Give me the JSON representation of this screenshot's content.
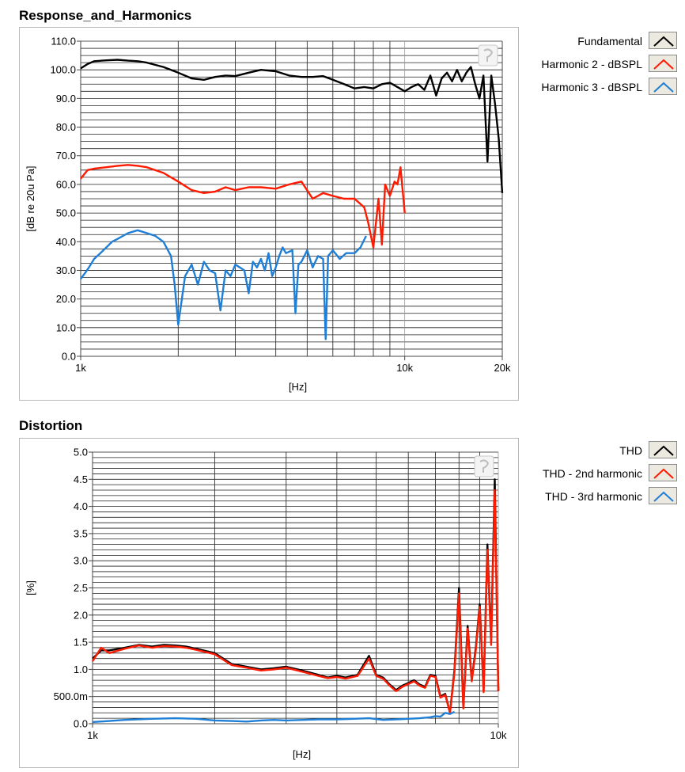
{
  "charts": [
    {
      "title": "Response_and_Harmonics",
      "chart_data": {
        "type": "line",
        "x_scale": "log",
        "xlim": [
          1000,
          20000
        ],
        "ylim": [
          0,
          110
        ],
        "xlabel": "[Hz]",
        "ylabel": "[dB re 20u Pa]",
        "x_tick_labels": [
          {
            "value": 1000,
            "label": "1k"
          },
          {
            "value": 10000,
            "label": "10k"
          },
          {
            "value": 20000,
            "label": "20k"
          }
        ],
        "y_ticks": [
          0,
          10,
          20,
          30,
          40,
          50,
          60,
          70,
          80,
          90,
          100,
          110
        ],
        "y_tick_labels": [
          "0.0",
          "10.0",
          "20.0",
          "30.0",
          "40.0",
          "50.0",
          "60.0",
          "70.0",
          "80.0",
          "90.0",
          "100.0",
          "110.0"
        ],
        "grid": true,
        "legend": "right",
        "series": [
          {
            "name": "Fundamental",
            "color": "#000000",
            "x": [
              1000,
              1050,
              1100,
              1200,
              1300,
              1400,
              1500,
              1600,
              1800,
              2000,
              2200,
              2400,
              2600,
              2800,
              3000,
              3300,
              3600,
              4000,
              4400,
              4800,
              5200,
              5600,
              6000,
              6500,
              7000,
              7500,
              8000,
              8500,
              9000,
              9500,
              10000,
              10500,
              11000,
              11500,
              12000,
              12500,
              13000,
              13500,
              14000,
              14500,
              15000,
              15500,
              16000,
              16500,
              17000,
              17500,
              18000,
              18500,
              19000,
              19500,
              20000
            ],
            "y": [
              100.5,
              102,
              103,
              103.3,
              103.5,
              103.2,
              103,
              102.5,
              101,
              99,
              97,
              96.5,
              97.5,
              98,
              97.8,
              99,
              100,
              99.5,
              98,
              97.5,
              97.5,
              97.8,
              96.5,
              95,
              93.5,
              94,
              93.5,
              95,
              95.5,
              94,
              92.5,
              94,
              95,
              93,
              98,
              91,
              97,
              99,
              96,
              100,
              96,
              99,
              101,
              95,
              90,
              98,
              68,
              98,
              88,
              76,
              57
            ]
          },
          {
            "name": "Harmonic 2 - dBSPL",
            "color": "#ff1a00",
            "x": [
              1000,
              1050,
              1100,
              1200,
              1300,
              1400,
              1500,
              1600,
              1800,
              2000,
              2200,
              2400,
              2600,
              2800,
              3000,
              3300,
              3600,
              4000,
              4400,
              4800,
              5200,
              5600,
              6000,
              6500,
              7000,
              7500,
              7700,
              8000,
              8300,
              8500,
              8700,
              9000,
              9300,
              9500,
              9700,
              10000
            ],
            "y": [
              62,
              65,
              65.5,
              66,
              66.5,
              66.8,
              66.5,
              66,
              64,
              61,
              58,
              57,
              57.5,
              59,
              58,
              59,
              59,
              58.5,
              60,
              61,
              55,
              57,
              56,
              55,
              55,
              52,
              47,
              38,
              55,
              39,
              60,
              56,
              61,
              60,
              66,
              50
            ]
          },
          {
            "name": "Harmonic 3 - dBSPL",
            "color": "#1f7fd6",
            "x": [
              1000,
              1030,
              1060,
              1100,
              1150,
              1200,
              1250,
              1300,
              1350,
              1400,
              1500,
              1600,
              1700,
              1800,
              1900,
              1950,
              2000,
              2100,
              2200,
              2300,
              2400,
              2500,
              2600,
              2700,
              2800,
              2900,
              3000,
              3100,
              3200,
              3300,
              3400,
              3500,
              3600,
              3700,
              3800,
              3900,
              4000,
              4100,
              4200,
              4300,
              4500,
              4600,
              4700,
              4800,
              5000,
              5200,
              5400,
              5600,
              5700,
              5800,
              6000,
              6300,
              6600,
              7000,
              7300,
              7600
            ],
            "y": [
              27,
              29,
              31,
              34,
              36,
              38,
              40,
              41,
              42,
              43,
              44,
              43,
              42,
              40,
              35,
              25,
              11,
              28,
              32,
              25,
              33,
              30,
              29,
              16,
              30,
              28,
              32,
              31,
              30,
              22,
              33,
              31,
              34,
              30,
              36,
              28,
              31,
              35,
              38,
              36,
              37,
              15,
              32,
              33,
              37,
              31,
              35,
              34,
              6,
              35,
              37,
              34,
              36,
              36,
              38,
              42
            ]
          }
        ]
      }
    },
    {
      "title": "Distortion",
      "chart_data": {
        "type": "line",
        "x_scale": "log",
        "xlim": [
          1000,
          10000
        ],
        "ylim": [
          0,
          5
        ],
        "xlabel": "[Hz]",
        "ylabel": "[%]",
        "x_tick_labels": [
          {
            "value": 1000,
            "label": "1k"
          },
          {
            "value": 10000,
            "label": "10k"
          }
        ],
        "y_ticks": [
          0,
          0.5,
          1,
          1.5,
          2,
          2.5,
          3,
          3.5,
          4,
          4.5,
          5
        ],
        "y_tick_labels": [
          "0.0",
          "500.0m",
          "1.0",
          "1.5",
          "2.0",
          "2.5",
          "3.0",
          "3.5",
          "4.0",
          "4.5",
          "5.0"
        ],
        "grid": true,
        "legend": "right",
        "series": [
          {
            "name": "THD",
            "color": "#000000",
            "x": [
              1000,
              1050,
              1100,
              1200,
              1300,
              1400,
              1500,
              1600,
              1700,
              1800,
              2000,
              2200,
              2400,
              2600,
              2800,
              3000,
              3200,
              3400,
              3600,
              3800,
              4000,
              4200,
              4500,
              4800,
              5000,
              5200,
              5400,
              5600,
              5800,
              6000,
              6200,
              6400,
              6600,
              6800,
              7000,
              7200,
              7400,
              7600,
              7800,
              8000,
              8200,
              8400,
              8600,
              8800,
              9000,
              9200,
              9400,
              9600,
              9800,
              10000
            ],
            "y": [
              1.2,
              1.35,
              1.35,
              1.4,
              1.45,
              1.42,
              1.45,
              1.44,
              1.42,
              1.38,
              1.3,
              1.1,
              1.05,
              1.0,
              1.02,
              1.05,
              1.0,
              0.95,
              0.9,
              0.85,
              0.88,
              0.85,
              0.9,
              1.25,
              0.9,
              0.85,
              0.72,
              0.62,
              0.7,
              0.75,
              0.8,
              0.72,
              0.68,
              0.9,
              0.88,
              0.5,
              0.55,
              0.2,
              1.0,
              2.5,
              0.3,
              1.8,
              0.8,
              1.4,
              2.2,
              0.6,
              3.3,
              1.5,
              4.5,
              0.6
            ]
          },
          {
            "name": "THD - 2nd harmonic",
            "color": "#ff1a00",
            "x": [
              1000,
              1050,
              1100,
              1200,
              1300,
              1400,
              1500,
              1600,
              1700,
              1800,
              2000,
              2200,
              2400,
              2600,
              2800,
              3000,
              3200,
              3400,
              3600,
              3800,
              4000,
              4200,
              4500,
              4800,
              5000,
              5200,
              5400,
              5600,
              5800,
              6000,
              6200,
              6400,
              6600,
              6800,
              7000,
              7200,
              7400,
              7600,
              7800,
              8000,
              8200,
              8400,
              8600,
              8800,
              9000,
              9200,
              9400,
              9600,
              9800,
              10000
            ],
            "y": [
              1.15,
              1.4,
              1.3,
              1.38,
              1.44,
              1.4,
              1.43,
              1.42,
              1.4,
              1.36,
              1.28,
              1.08,
              1.03,
              0.98,
              1.0,
              1.03,
              0.98,
              0.93,
              0.88,
              0.84,
              0.86,
              0.83,
              0.88,
              1.2,
              0.88,
              0.83,
              0.7,
              0.6,
              0.68,
              0.73,
              0.78,
              0.7,
              0.66,
              0.88,
              0.86,
              0.48,
              0.53,
              0.2,
              0.95,
              2.4,
              0.28,
              1.75,
              0.78,
              1.35,
              2.15,
              0.58,
              3.2,
              1.45,
              4.3,
              0.6
            ]
          },
          {
            "name": "THD - 3rd harmonic",
            "color": "#1f7fd6",
            "x": [
              1000,
              1100,
              1200,
              1400,
              1600,
              1800,
              2000,
              2200,
              2400,
              2600,
              2800,
              3000,
              3300,
              3600,
              4000,
              4400,
              4800,
              5200,
              5600,
              6000,
              6400,
              6800,
              7000,
              7200,
              7400,
              7600,
              7800
            ],
            "y": [
              0.03,
              0.05,
              0.07,
              0.09,
              0.1,
              0.09,
              0.06,
              0.05,
              0.04,
              0.06,
              0.07,
              0.06,
              0.07,
              0.08,
              0.08,
              0.09,
              0.1,
              0.07,
              0.08,
              0.09,
              0.1,
              0.12,
              0.14,
              0.13,
              0.2,
              0.18,
              0.22
            ]
          }
        ]
      }
    }
  ]
}
